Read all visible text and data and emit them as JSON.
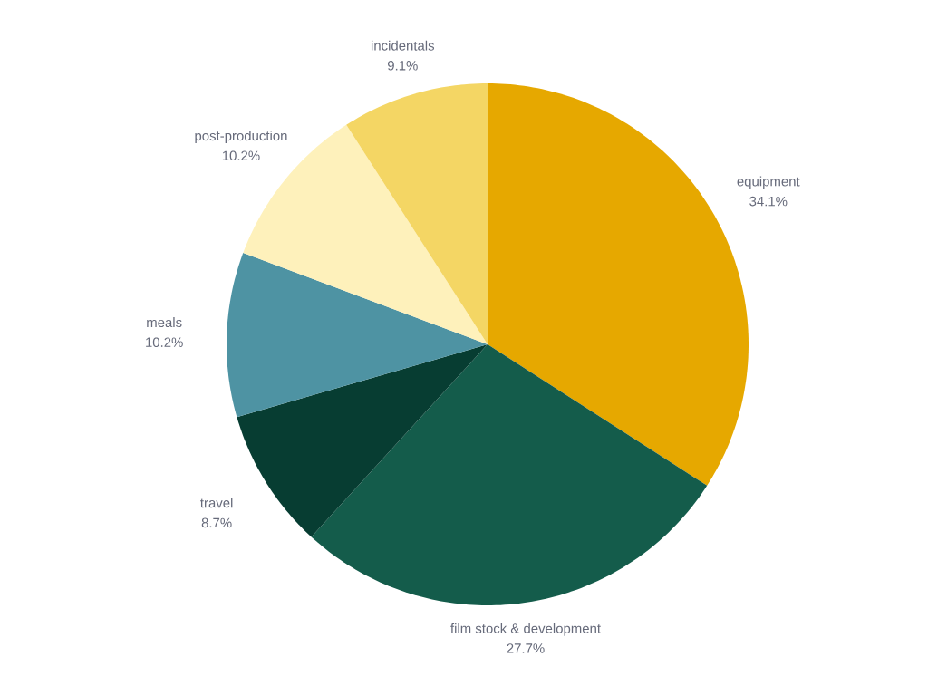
{
  "chart_data": {
    "type": "pie",
    "categories": [
      "equipment",
      "film stock & development",
      "travel",
      "meals",
      "post-production",
      "incidentals"
    ],
    "values": [
      34.1,
      27.7,
      8.7,
      10.2,
      10.2,
      9.1
    ],
    "value_labels": [
      "34.1%",
      "27.7%",
      "8.7%",
      "10.2%",
      "10.2%",
      "9.1%"
    ],
    "colors": [
      "#e6a800",
      "#145c4b",
      "#073d32",
      "#4e93a3",
      "#fef1bb",
      "#f4d664"
    ]
  }
}
